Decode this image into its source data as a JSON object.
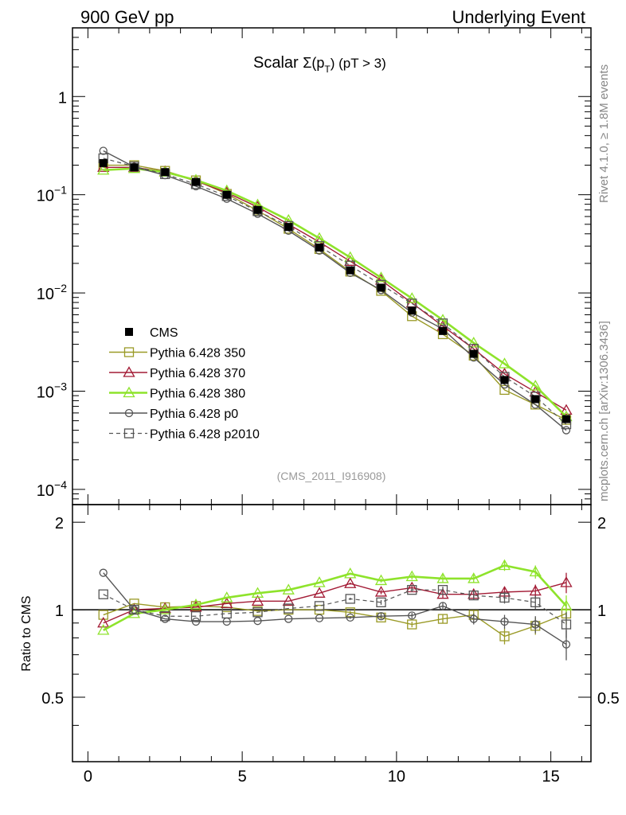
{
  "header": {
    "left": "900 GeV pp",
    "right": "Underlying Event"
  },
  "side_labels": {
    "rivet": "Rivet 4.1.0, ≥ 1.8M events",
    "mcplots": "mcplots.cern.ch [arXiv:1306.3436]"
  },
  "chart_data": {
    "type": "line",
    "title_prefix": "Scalar ",
    "title_sigma": "Σ(p",
    "title_sub": "T",
    "title_suffix": ") (pT >  3)",
    "analysis_id": "(CMS_2011_I916908)",
    "xlabel": "",
    "ylabel": "",
    "ratio_ylabel": "Ratio to CMS",
    "xlim": [
      -0.5,
      16.3
    ],
    "ylim": [
      7e-05,
      5
    ],
    "yscale": "log",
    "ratio_ylim": [
      0.3,
      2.3
    ],
    "x_ticks": [
      0,
      5,
      10,
      15
    ],
    "x_tick_labels": [
      "0",
      "5",
      "10",
      "15"
    ],
    "y_ticks": [
      1,
      0.1,
      0.01,
      0.001,
      0.0001
    ],
    "y_tick_labels": [
      {
        "base": "1",
        "exp": ""
      },
      {
        "base": "10",
        "exp": "−1"
      },
      {
        "base": "10",
        "exp": "−2"
      },
      {
        "base": "10",
        "exp": "−3"
      },
      {
        "base": "10",
        "exp": "−4"
      }
    ],
    "ratio_ticks": [
      2,
      1,
      0.5
    ],
    "ratio_tick_labels": [
      "2",
      "1",
      "0.5"
    ],
    "x": [
      0.5,
      1.5,
      2.5,
      3.5,
      4.5,
      5.5,
      6.5,
      7.5,
      8.5,
      9.5,
      10.5,
      11.5,
      12.5,
      13.5,
      14.5,
      15.5
    ],
    "data": {
      "name": "CMS",
      "values": [
        0.21,
        0.19,
        0.17,
        0.135,
        0.1,
        0.07,
        0.047,
        0.029,
        0.017,
        0.0113,
        0.0066,
        0.0041,
        0.0024,
        0.0013,
        0.00083,
        0.00052
      ]
    },
    "series": [
      {
        "name": "Pythia 6.428 350",
        "color": "#9a9a26",
        "marker": "square-open",
        "dash": "",
        "width": 1.4,
        "values": [
          0.2,
          0.2,
          0.175,
          0.14,
          0.102,
          0.069,
          0.045,
          0.028,
          0.0165,
          0.0105,
          0.0058,
          0.0038,
          0.0023,
          0.00103,
          0.00073,
          0.00051
        ]
      },
      {
        "name": "Pythia 6.428 370",
        "color": "#a31b35",
        "marker": "triangle-open",
        "dash": "",
        "width": 1.4,
        "values": [
          0.19,
          0.19,
          0.172,
          0.138,
          0.105,
          0.075,
          0.05,
          0.033,
          0.021,
          0.0135,
          0.0079,
          0.0046,
          0.0027,
          0.0015,
          0.00098,
          0.00064
        ]
      },
      {
        "name": "Pythia 6.428 380",
        "color": "#8ee32b",
        "marker": "triangle-open",
        "dash": "",
        "width": 2.6,
        "values": [
          0.178,
          0.185,
          0.17,
          0.141,
          0.11,
          0.079,
          0.055,
          0.036,
          0.023,
          0.0143,
          0.0088,
          0.0053,
          0.0031,
          0.0019,
          0.00113,
          0.00055
        ]
      },
      {
        "name": "Pythia 6.428 p0",
        "color": "#555555",
        "marker": "circle-open",
        "dash": "",
        "width": 1.4,
        "values": [
          0.28,
          0.192,
          0.158,
          0.122,
          0.091,
          0.064,
          0.043,
          0.027,
          0.016,
          0.0107,
          0.0063,
          0.0043,
          0.0022,
          0.00117,
          0.00073,
          0.0004
        ]
      },
      {
        "name": "Pythia 6.428 p2010",
        "color": "#555555",
        "marker": "square-open",
        "dash": "5,4",
        "width": 1.2,
        "values": [
          0.235,
          0.194,
          0.162,
          0.128,
          0.097,
          0.068,
          0.048,
          0.03,
          0.019,
          0.0121,
          0.0078,
          0.0049,
          0.0027,
          0.0014,
          0.00088,
          0.00046
        ]
      }
    ],
    "ratios": [
      {
        "name": "Pythia 6.428 350",
        "values": [
          0.96,
          1.05,
          1.02,
          1.03,
          1.02,
          0.99,
          1.0,
          1.0,
          0.98,
          0.94,
          0.89,
          0.93,
          0.96,
          0.81,
          0.88,
          0.97
        ],
        "err": [
          0,
          0,
          0,
          0,
          0,
          0,
          0,
          0,
          0.01,
          0.01,
          0.02,
          0.03,
          0.03,
          0.05,
          0.06,
          0.08
        ]
      },
      {
        "name": "Pythia 6.428 370",
        "values": [
          0.9,
          1.0,
          1.01,
          1.02,
          1.05,
          1.07,
          1.07,
          1.14,
          1.23,
          1.15,
          1.19,
          1.13,
          1.13,
          1.15,
          1.16,
          1.24
        ],
        "err": [
          0,
          0,
          0,
          0,
          0,
          0,
          0,
          0,
          0.01,
          0.02,
          0.02,
          0.03,
          0.04,
          0.05,
          0.06,
          0.1
        ]
      },
      {
        "name": "Pythia 6.428 380",
        "values": [
          0.85,
          0.97,
          1.0,
          1.04,
          1.1,
          1.14,
          1.17,
          1.24,
          1.33,
          1.26,
          1.3,
          1.28,
          1.28,
          1.42,
          1.35,
          1.03
        ],
        "err": [
          0,
          0,
          0,
          0,
          0,
          0,
          0,
          0,
          0.01,
          0.02,
          0.03,
          0.04,
          0.04,
          0.06,
          0.07,
          0.09
        ]
      },
      {
        "name": "Pythia 6.428 p0",
        "values": [
          1.34,
          1.0,
          0.93,
          0.91,
          0.91,
          0.915,
          0.93,
          0.935,
          0.94,
          0.95,
          0.955,
          1.03,
          0.93,
          0.91,
          0.89,
          0.76
        ],
        "err": [
          0,
          0,
          0,
          0,
          0,
          0,
          0,
          0,
          0.01,
          0.02,
          0.02,
          0.03,
          0.04,
          0.05,
          0.06,
          0.09
        ]
      },
      {
        "name": "Pythia 6.428 p2010",
        "values": [
          1.13,
          1.0,
          0.95,
          0.95,
          0.97,
          0.98,
          1.01,
          1.03,
          1.09,
          1.06,
          1.17,
          1.17,
          1.12,
          1.1,
          1.06,
          0.89
        ],
        "err": [
          0,
          0,
          0,
          0,
          0,
          0,
          0,
          0,
          0.01,
          0.02,
          0.02,
          0.03,
          0.04,
          0.05,
          0.06,
          0.09
        ]
      }
    ]
  }
}
